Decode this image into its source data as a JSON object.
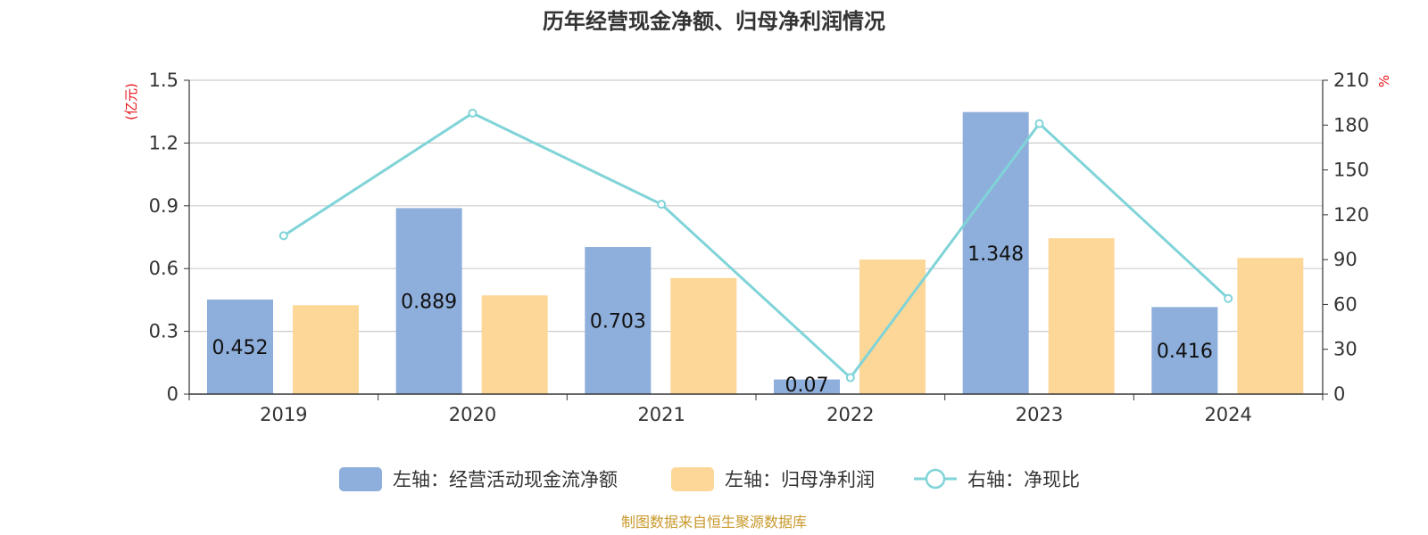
{
  "chart_data": {
    "type": "bar",
    "title": "历年经营现金净额、归母净利润情况",
    "categories": [
      "2019",
      "2020",
      "2021",
      "2022",
      "2023",
      "2024"
    ],
    "left_axis": {
      "unit": "(亿元)",
      "ylim": [
        0,
        1.5
      ],
      "ticks": [
        "0",
        "0.3",
        "0.6",
        "0.9",
        "1.2",
        "1.5"
      ]
    },
    "right_axis": {
      "unit": "%",
      "ylim": [
        0,
        210
      ],
      "ticks": [
        "0",
        "30",
        "60",
        "90",
        "120",
        "150",
        "180",
        "210"
      ]
    },
    "series": [
      {
        "name": "左轴：经营活动现金流净额",
        "type": "bar",
        "axis": "left",
        "color": "#8eaedb",
        "values": [
          0.452,
          0.889,
          0.703,
          0.07,
          1.348,
          0.416
        ],
        "labels": [
          "0.452",
          "0.889",
          "0.703",
          "0.07",
          "1.348",
          "0.416"
        ]
      },
      {
        "name": "左轴：归母净利润",
        "type": "bar",
        "axis": "left",
        "color": "#fdd797",
        "values": [
          0.425,
          0.472,
          0.555,
          0.643,
          0.745,
          0.651
        ]
      },
      {
        "name": "右轴：净现比",
        "type": "line",
        "axis": "right",
        "color": "#80d4d8",
        "values": [
          106,
          188,
          127,
          11,
          181,
          64
        ]
      }
    ],
    "grid": true,
    "legend_position": "bottom"
  },
  "footer": {
    "source": "制图数据来自恒生聚源数据库"
  }
}
